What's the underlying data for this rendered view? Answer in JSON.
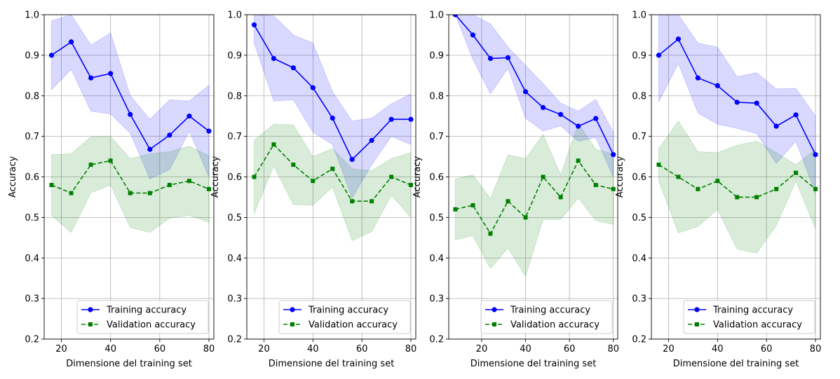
{
  "colors": {
    "training": "#0000ff",
    "validation": "#008000",
    "training_band": "#0000ff",
    "validation_band": "#008000",
    "grid": "#b0b0b0",
    "axis": "#000000"
  },
  "chart_data": [
    {
      "type": "line",
      "xlabel": "Dimensione del training set",
      "ylabel": "Accuracy",
      "xlim": [
        13,
        82
      ],
      "ylim": [
        0.2,
        1.0
      ],
      "xticks": [
        20,
        40,
        60,
        80
      ],
      "yticks": [
        0.2,
        0.3,
        0.4,
        0.5,
        0.6,
        0.7,
        0.8,
        0.9,
        1.0
      ],
      "grid": true,
      "legend_position": "lower right",
      "x": [
        16,
        24,
        32,
        40,
        48,
        56,
        64,
        72,
        80
      ],
      "series": [
        {
          "name": "Training accuracy",
          "marker": "circle",
          "linestyle": "solid",
          "values": [
            0.9,
            0.933,
            0.844,
            0.855,
            0.754,
            0.668,
            0.703,
            0.75,
            0.713
          ],
          "lower": [
            0.815,
            0.865,
            0.762,
            0.755,
            0.708,
            0.595,
            0.618,
            0.713,
            0.6
          ],
          "upper": [
            0.985,
            1.0,
            0.925,
            0.955,
            0.8,
            0.742,
            0.79,
            0.787,
            0.826
          ]
        },
        {
          "name": "Validation accuracy",
          "marker": "square",
          "linestyle": "dashed",
          "values": [
            0.58,
            0.56,
            0.63,
            0.64,
            0.56,
            0.56,
            0.58,
            0.59,
            0.57
          ],
          "lower": [
            0.505,
            0.463,
            0.561,
            0.58,
            0.475,
            0.463,
            0.498,
            0.505,
            0.488
          ],
          "upper": [
            0.655,
            0.657,
            0.699,
            0.7,
            0.645,
            0.657,
            0.662,
            0.676,
            0.652
          ]
        }
      ]
    },
    {
      "type": "line",
      "xlabel": "Dimensione del training set",
      "ylabel": "Accuracy",
      "xlim": [
        13,
        82
      ],
      "ylim": [
        0.2,
        1.0
      ],
      "xticks": [
        20,
        40,
        60,
        80
      ],
      "yticks": [
        0.2,
        0.3,
        0.4,
        0.5,
        0.6,
        0.7,
        0.8,
        0.9,
        1.0
      ],
      "grid": true,
      "legend_position": "lower right",
      "x": [
        16,
        24,
        32,
        40,
        48,
        56,
        64,
        72,
        80
      ],
      "series": [
        {
          "name": "Training accuracy",
          "marker": "circle",
          "linestyle": "solid",
          "values": [
            0.975,
            0.892,
            0.869,
            0.82,
            0.745,
            0.643,
            0.69,
            0.742,
            0.742
          ],
          "lower": [
            0.93,
            0.787,
            0.79,
            0.71,
            0.68,
            0.548,
            0.63,
            0.7,
            0.68
          ],
          "upper": [
            1.0,
            0.997,
            0.95,
            0.93,
            0.81,
            0.738,
            0.745,
            0.78,
            0.805
          ]
        },
        {
          "name": "Validation accuracy",
          "marker": "square",
          "linestyle": "dashed",
          "values": [
            0.6,
            0.68,
            0.63,
            0.59,
            0.62,
            0.54,
            0.54,
            0.6,
            0.58
          ],
          "lower": [
            0.51,
            0.627,
            0.532,
            0.53,
            0.575,
            0.443,
            0.465,
            0.555,
            0.5
          ],
          "upper": [
            0.69,
            0.73,
            0.728,
            0.65,
            0.67,
            0.62,
            0.615,
            0.645,
            0.66
          ]
        }
      ]
    },
    {
      "type": "line",
      "xlabel": "Dimensione del training set",
      "ylabel": "Accuracy",
      "xlim": [
        5,
        82
      ],
      "ylim": [
        0.2,
        1.0
      ],
      "xticks": [
        20,
        40,
        60,
        80
      ],
      "yticks": [
        0.2,
        0.3,
        0.4,
        0.5,
        0.6,
        0.7,
        0.8,
        0.9,
        1.0
      ],
      "grid": true,
      "legend_position": "lower right",
      "x": [
        8,
        16,
        24,
        32,
        40,
        48,
        56,
        64,
        72,
        80
      ],
      "series": [
        {
          "name": "Training accuracy",
          "marker": "circle",
          "linestyle": "solid",
          "values": [
            1.0,
            0.95,
            0.892,
            0.894,
            0.81,
            0.771,
            0.754,
            0.725,
            0.744,
            0.655
          ],
          "lower": [
            1.0,
            0.89,
            0.805,
            0.868,
            0.745,
            0.713,
            0.726,
            0.688,
            0.697,
            0.6
          ],
          "upper": [
            1.0,
            1.0,
            0.977,
            0.92,
            0.875,
            0.83,
            0.782,
            0.762,
            0.791,
            0.71
          ]
        },
        {
          "name": "Validation accuracy",
          "marker": "square",
          "linestyle": "dashed",
          "values": [
            0.52,
            0.53,
            0.46,
            0.54,
            0.5,
            0.6,
            0.55,
            0.64,
            0.58,
            0.57
          ],
          "lower": [
            0.445,
            0.455,
            0.374,
            0.425,
            0.355,
            0.495,
            0.495,
            0.548,
            0.492,
            0.483
          ],
          "upper": [
            0.595,
            0.605,
            0.546,
            0.655,
            0.645,
            0.705,
            0.605,
            0.732,
            0.668,
            0.657
          ]
        }
      ]
    },
    {
      "type": "line",
      "xlabel": "Dimensione del training set",
      "ylabel": "Accuracy",
      "xlim": [
        13,
        82
      ],
      "ylim": [
        0.2,
        1.0
      ],
      "xticks": [
        20,
        40,
        60,
        80
      ],
      "yticks": [
        0.2,
        0.3,
        0.4,
        0.5,
        0.6,
        0.7,
        0.8,
        0.9,
        1.0
      ],
      "grid": true,
      "legend_position": "lower right",
      "x": [
        16,
        24,
        32,
        40,
        48,
        56,
        64,
        72,
        80
      ],
      "series": [
        {
          "name": "Training accuracy",
          "marker": "circle",
          "linestyle": "solid",
          "values": [
            0.9,
            0.94,
            0.844,
            0.825,
            0.784,
            0.782,
            0.725,
            0.753,
            0.655
          ],
          "lower": [
            0.785,
            0.88,
            0.758,
            0.73,
            0.72,
            0.707,
            0.633,
            0.688,
            0.56
          ],
          "upper": [
            1.0,
            1.0,
            0.93,
            0.92,
            0.847,
            0.857,
            0.817,
            0.818,
            0.75
          ]
        },
        {
          "name": "Validation accuracy",
          "marker": "square",
          "linestyle": "dashed",
          "values": [
            0.63,
            0.6,
            0.57,
            0.59,
            0.55,
            0.55,
            0.57,
            0.61,
            0.57
          ],
          "lower": [
            0.59,
            0.462,
            0.478,
            0.52,
            0.422,
            0.412,
            0.48,
            0.59,
            0.472
          ],
          "upper": [
            0.67,
            0.738,
            0.662,
            0.66,
            0.678,
            0.688,
            0.66,
            0.63,
            0.668
          ]
        }
      ]
    }
  ]
}
